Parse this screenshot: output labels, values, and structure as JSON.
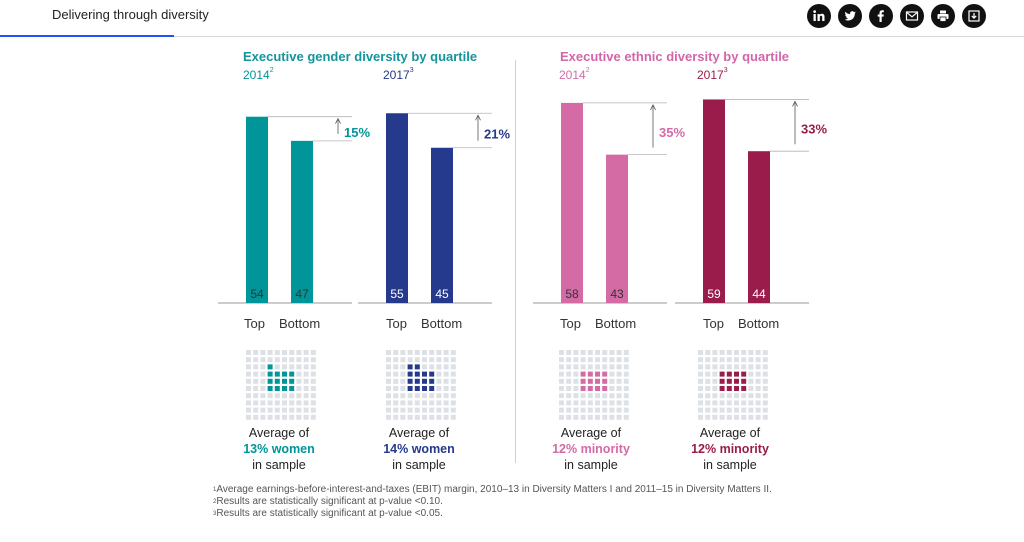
{
  "header": {
    "title": "Delivering through diversity",
    "share_icons": [
      "linkedin-icon",
      "twitter-icon",
      "facebook-icon",
      "email-icon",
      "print-icon",
      "download-icon"
    ]
  },
  "chart_data": [
    {
      "type": "bar",
      "title": "Executive gender diversity by quartile",
      "color_title": "#15949a",
      "groups": [
        {
          "year": "2014",
          "footnote": "2",
          "color": "#009598",
          "categories": [
            "Top",
            "Bottom"
          ],
          "values": [
            54,
            47
          ],
          "difference": "15%",
          "average_prefix": "Average of",
          "average_value": "13% women",
          "average_suffix": "in sample",
          "average_fraction": 0.13
        },
        {
          "year": "2017",
          "footnote": "3",
          "color": "#253a8c",
          "categories": [
            "Top",
            "Bottom"
          ],
          "values": [
            55,
            45
          ],
          "difference": "21%",
          "average_prefix": "Average of",
          "average_value": "14% women",
          "average_suffix": "in sample",
          "average_fraction": 0.14
        }
      ]
    },
    {
      "type": "bar",
      "title": "Executive ethnic diversity by quartile",
      "color_title": "#d366a8",
      "groups": [
        {
          "year": "2014",
          "footnote": "2",
          "color": "#d46ba5",
          "categories": [
            "Top",
            "Bottom"
          ],
          "values": [
            58,
            43
          ],
          "difference": "35%",
          "average_prefix": "Average of",
          "average_value": "12% minority",
          "average_suffix": "in sample",
          "average_fraction": 0.12
        },
        {
          "year": "2017",
          "footnote": "3",
          "color": "#9a1c4b",
          "categories": [
            "Top",
            "Bottom"
          ],
          "values": [
            59,
            44
          ],
          "difference": "33%",
          "average_prefix": "Average of",
          "average_value": "12% minority",
          "average_suffix": "in sample",
          "average_fraction": 0.12
        }
      ]
    }
  ],
  "colors": {
    "waffle_empty": "#dde1e6",
    "bar_label_dark": "#333333",
    "bar_label_light": "#ffffff"
  },
  "footnotes": [
    {
      "mark": "1",
      "text": "Average earnings-before-interest-and-taxes (EBIT) margin, 2010–13 in Diversity Matters I and 2011–15 in Diversity Matters II."
    },
    {
      "mark": "2",
      "text": "Results are statistically significant at p-value <0.10."
    },
    {
      "mark": "3",
      "text": "Results are statistically significant at p-value <0.05."
    }
  ]
}
